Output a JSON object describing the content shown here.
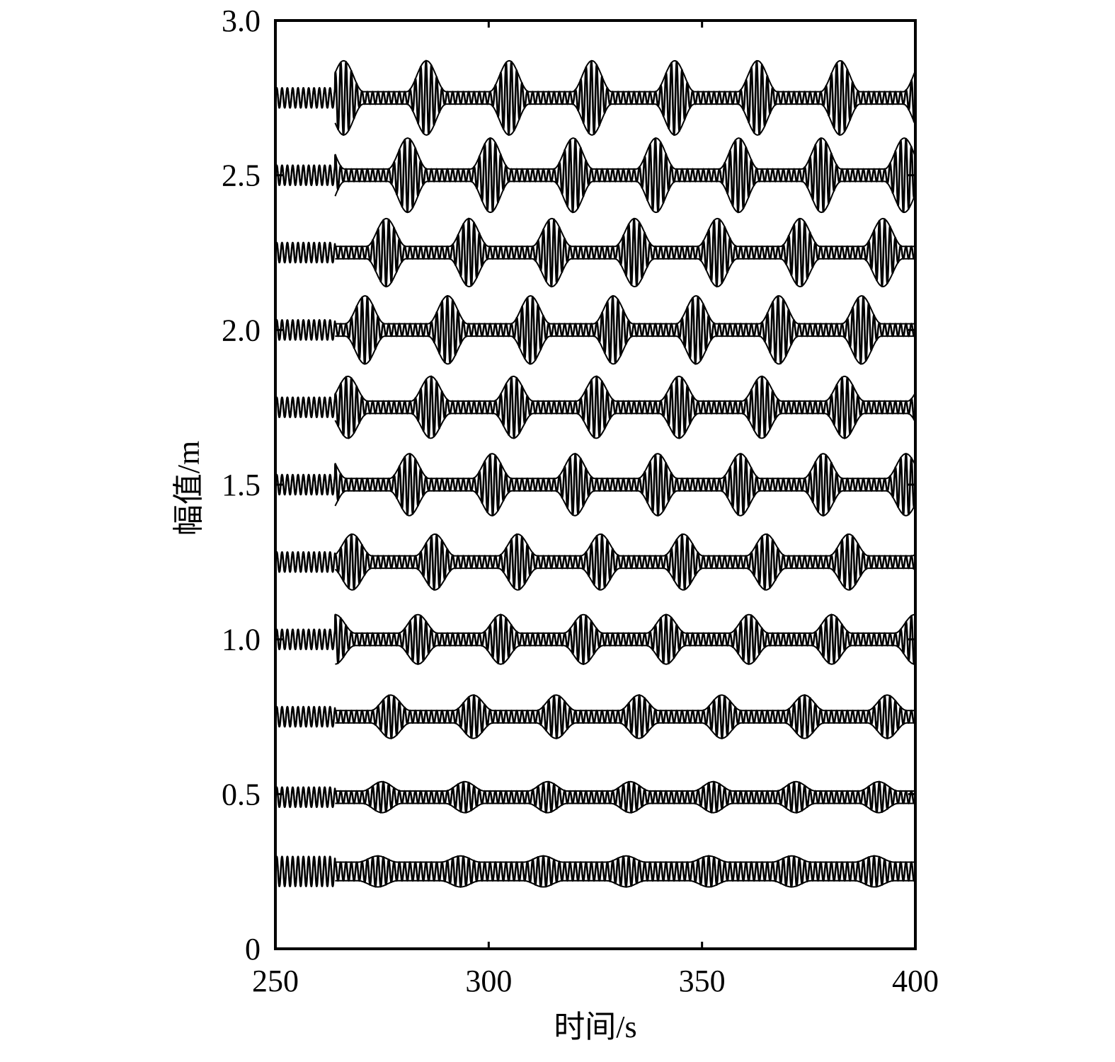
{
  "chart_data": {
    "type": "line",
    "title": "",
    "xlabel": "时间/s",
    "ylabel": "幅值/m",
    "xlim": [
      250,
      400
    ],
    "ylim": [
      0,
      3.0
    ],
    "x_ticks": [
      250,
      300,
      350,
      400
    ],
    "x_tick_labels": [
      "250",
      "300",
      "350",
      "400"
    ],
    "y_ticks": [
      0,
      0.5,
      1.0,
      1.5,
      2.0,
      2.5,
      3.0
    ],
    "y_tick_labels": [
      "0",
      "0.5",
      "1.0",
      "1.5",
      "2.0",
      "2.5",
      "3.0"
    ],
    "grid": false,
    "legend": "none",
    "line_color": "#000000",
    "series": [
      {
        "baseline": 0.25,
        "signal_start": 250,
        "envelope_start": 264,
        "envelope_period": 19.4,
        "first_peak": 274,
        "carrier_period": 1.25,
        "peak_amplitude": 0.05,
        "trough_amplitude": 0.03
      },
      {
        "baseline": 0.49,
        "signal_start": 250,
        "envelope_start": 264,
        "envelope_period": 19.4,
        "first_peak": 275,
        "carrier_period": 1.25,
        "peak_amplitude": 0.05,
        "trough_amplitude": 0.02
      },
      {
        "baseline": 0.75,
        "signal_start": 250,
        "envelope_start": 264,
        "envelope_period": 19.4,
        "first_peak": 277,
        "carrier_period": 1.25,
        "peak_amplitude": 0.07,
        "trough_amplitude": 0.02
      },
      {
        "baseline": 1.0,
        "signal_start": 250,
        "envelope_start": 264,
        "envelope_period": 19.4,
        "first_peak": 264,
        "carrier_period": 1.25,
        "peak_amplitude": 0.08,
        "trough_amplitude": 0.02
      },
      {
        "baseline": 1.25,
        "signal_start": 250,
        "envelope_start": 264,
        "envelope_period": 19.4,
        "first_peak": 268,
        "carrier_period": 1.25,
        "peak_amplitude": 0.09,
        "trough_amplitude": 0.02
      },
      {
        "baseline": 1.5,
        "signal_start": 250,
        "envelope_start": 264,
        "envelope_period": 19.4,
        "first_peak": 262,
        "carrier_period": 1.25,
        "peak_amplitude": 0.1,
        "trough_amplitude": 0.02
      },
      {
        "baseline": 1.75,
        "signal_start": 250,
        "envelope_start": 264,
        "envelope_period": 19.4,
        "first_peak": 267,
        "carrier_period": 1.25,
        "peak_amplitude": 0.1,
        "trough_amplitude": 0.02
      },
      {
        "baseline": 2.0,
        "signal_start": 250,
        "envelope_start": 264,
        "envelope_period": 19.4,
        "first_peak": 271,
        "carrier_period": 1.25,
        "peak_amplitude": 0.11,
        "trough_amplitude": 0.02
      },
      {
        "baseline": 2.25,
        "signal_start": 250,
        "envelope_start": 264,
        "envelope_period": 19.4,
        "first_peak": 276,
        "carrier_period": 1.25,
        "peak_amplitude": 0.11,
        "trough_amplitude": 0.02
      },
      {
        "baseline": 2.5,
        "signal_start": 250,
        "envelope_start": 264,
        "envelope_period": 19.4,
        "first_peak": 281,
        "carrier_period": 1.25,
        "peak_amplitude": 0.12,
        "trough_amplitude": 0.02
      },
      {
        "baseline": 2.75,
        "signal_start": 250,
        "envelope_start": 264,
        "envelope_period": 19.4,
        "first_peak": 266,
        "carrier_period": 1.25,
        "peak_amplitude": 0.12,
        "trough_amplitude": 0.02
      }
    ]
  }
}
